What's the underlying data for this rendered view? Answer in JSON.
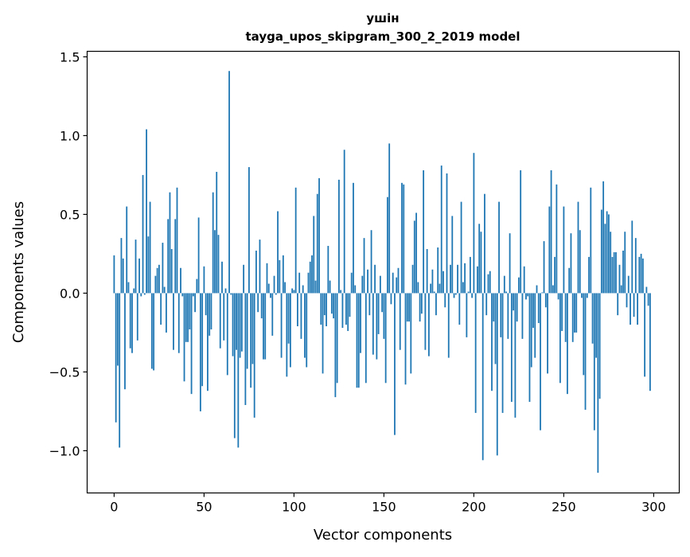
{
  "chart_data": {
    "type": "bar",
    "title": "ушін",
    "subtitle": "tayga_upos_skipgram_300_2_2019 model",
    "xlabel": "Vector components",
    "ylabel": "Components values",
    "xlim": [
      -15,
      314.2
    ],
    "ylim": [
      -1.268,
      1.535
    ],
    "xticks": [
      0,
      50,
      100,
      150,
      200,
      250,
      300
    ],
    "xtick_labels": [
      "0",
      "50",
      "100",
      "150",
      "200",
      "250",
      "300"
    ],
    "yticks": [
      -1.0,
      -0.5,
      0.0,
      0.5,
      1.0,
      1.5
    ],
    "ytick_labels": [
      "−1.0",
      "−0.5",
      "0.0",
      "0.5",
      "1.0",
      "1.5"
    ],
    "grid": false,
    "bar_color": "#1f77b4",
    "values": [
      0.24,
      -0.82,
      -0.46,
      -0.98,
      0.35,
      0.22,
      -0.61,
      0.55,
      0.07,
      -0.35,
      -0.38,
      0.03,
      0.34,
      -0.3,
      0.22,
      -0.02,
      0.75,
      -0.01,
      1.04,
      0.36,
      0.58,
      -0.48,
      -0.49,
      0.11,
      0.16,
      0.18,
      -0.2,
      0.32,
      0.04,
      -0.25,
      0.47,
      0.64,
      0.28,
      -0.36,
      0.47,
      0.67,
      -0.38,
      0.16,
      -0.02,
      -0.56,
      -0.31,
      -0.31,
      -0.23,
      -0.64,
      -0.02,
      -0.12,
      0.09,
      0.48,
      -0.75,
      -0.59,
      0.17,
      -0.14,
      -0.62,
      -0.27,
      -0.23,
      0.64,
      0.4,
      0.77,
      0.37,
      -0.35,
      0.2,
      -0.3,
      0.03,
      -0.52,
      1.41,
      -0.01,
      -0.4,
      -0.92,
      -0.36,
      -0.98,
      -0.41,
      -0.37,
      0.18,
      -0.71,
      -0.48,
      0.8,
      -0.6,
      -0.45,
      -0.79,
      0.27,
      -0.12,
      0.34,
      -0.16,
      -0.42,
      -0.42,
      0.19,
      0.06,
      -0.03,
      -0.27,
      0.11,
      -0.01,
      0.52,
      0.21,
      -0.41,
      0.24,
      0.07,
      -0.53,
      -0.32,
      -0.47,
      0.03,
      0.02,
      0.67,
      -0.21,
      0.13,
      -0.29,
      0.05,
      -0.41,
      -0.47,
      0.13,
      0.2,
      0.24,
      0.49,
      0.08,
      0.63,
      0.73,
      -0.2,
      -0.51,
      -0.14,
      -0.21,
      0.3,
      0.08,
      -0.13,
      -0.16,
      -0.66,
      -0.57,
      0.72,
      0.02,
      -0.22,
      0.91,
      -0.2,
      -0.24,
      -0.15,
      0.13,
      0.7,
      0.05,
      -0.6,
      -0.6,
      -0.38,
      0.11,
      0.35,
      -0.57,
      0.15,
      -0.14,
      0.4,
      -0.39,
      0.18,
      -0.42,
      -0.26,
      0.11,
      -0.12,
      -0.29,
      -0.57,
      0.61,
      0.95,
      -0.07,
      0.13,
      -0.9,
      0.1,
      0.16,
      -0.36,
      0.7,
      0.69,
      -0.58,
      -0.18,
      -0.18,
      -0.51,
      0.18,
      0.46,
      0.51,
      0.07,
      -0.18,
      -0.13,
      0.78,
      -0.36,
      0.28,
      -0.4,
      0.06,
      0.15,
      0.01,
      -0.14,
      0.29,
      0.06,
      0.81,
      0.14,
      -0.09,
      0.76,
      -0.41,
      0.18,
      0.49,
      -0.03,
      -0.01,
      0.18,
      -0.2,
      0.58,
      0.07,
      0.19,
      -0.28,
      0.01,
      0.23,
      -0.03,
      0.89,
      -0.76,
      0.17,
      0.44,
      0.39,
      -1.06,
      0.63,
      -0.14,
      0.12,
      0.14,
      -0.62,
      -0.18,
      -0.45,
      -1.03,
      0.58,
      -0.28,
      -0.76,
      0.11,
      0.01,
      -0.29,
      0.38,
      -0.69,
      -0.11,
      -0.79,
      -0.18,
      0.1,
      0.78,
      -0.29,
      0.17,
      -0.04,
      -0.02,
      -0.69,
      -0.47,
      -0.22,
      -0.41,
      0.05,
      -0.19,
      -0.87,
      0.005,
      0.33,
      -0.09,
      -0.51,
      0.55,
      0.78,
      0.05,
      0.23,
      0.69,
      -0.04,
      -0.57,
      -0.24,
      0.55,
      -0.31,
      -0.64,
      0.16,
      0.38,
      -0.31,
      -0.25,
      -0.25,
      0.58,
      0.4,
      -0.03,
      -0.52,
      -0.74,
      -0.03,
      0.23,
      0.67,
      -0.32,
      -0.87,
      -0.41,
      -1.14,
      -0.67,
      0.53,
      0.71,
      0.44,
      0.52,
      0.5,
      0.39,
      0.23,
      0.26,
      0.26,
      -0.14,
      0.18,
      0.05,
      0.27,
      0.39,
      -0.09,
      0.11,
      -0.2,
      0.46,
      -0.15,
      0.35,
      -0.2,
      0.23,
      0.25,
      0.22,
      -0.53,
      0.04,
      -0.08,
      -0.62
    ]
  }
}
